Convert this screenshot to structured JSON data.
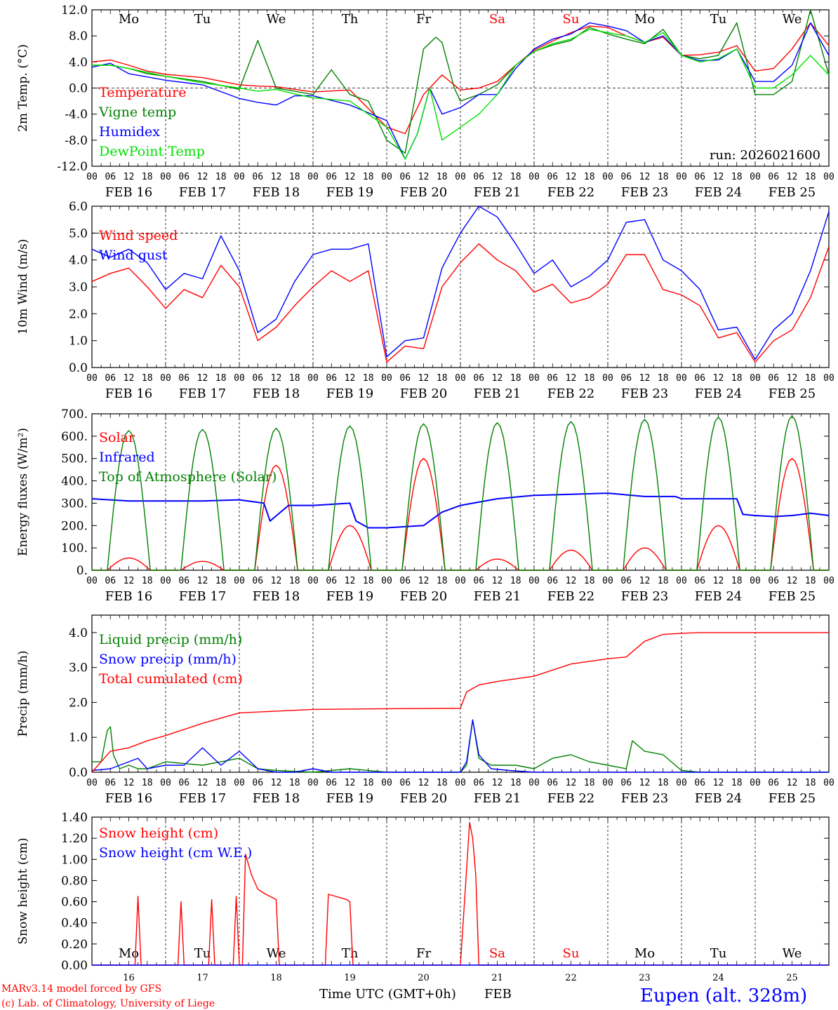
{
  "footer": {
    "model": "MARv3.14 model forced by GFS",
    "lab": "(c) Lab. of Climatology, University of Liege",
    "time_label": "Time UTC (GMT+0h)",
    "month": "FEB",
    "station": "Eupen (alt. 328m)"
  },
  "hour_ticks": [
    "00",
    "06",
    "12",
    "18"
  ],
  "final_tick": "00",
  "dates": [
    "FEB 16",
    "FEB 17",
    "FEB 18",
    "FEB 19",
    "FEB 20",
    "FEB 21",
    "FEB 22",
    "FEB 23",
    "FEB 24",
    "FEB 25"
  ],
  "day_numbers": [
    "16",
    "17",
    "18",
    "19",
    "20",
    "21",
    "22",
    "23",
    "24",
    "25"
  ],
  "weekdays": [
    "Mo",
    "Tu",
    "We",
    "Th",
    "Fr",
    "Sa",
    "Su",
    "Mo",
    "Tu",
    "We"
  ],
  "weekend_days": [
    5,
    6
  ],
  "colors": {
    "red": "#ff0000",
    "green": "#008000",
    "blue": "#0000ff",
    "lightgreen": "#00e000",
    "weekend": "#ff0000",
    "station": "#0000ff"
  },
  "chart_data": [
    {
      "id": "temp",
      "type": "line",
      "ylabel": "2m Temp. (°C)",
      "ylim": [
        -12,
        12
      ],
      "yticks": [
        "12.0",
        "8.0",
        "4.0",
        "0.0",
        "-4.0",
        "-8.0",
        "-12.0"
      ],
      "ytick_values": [
        12,
        8,
        4,
        0,
        -4,
        -8,
        -12
      ],
      "ref_lines": [
        0
      ],
      "run_label": "run: 2026021600",
      "x_range_hours": [
        0,
        240
      ],
      "series": [
        {
          "name": "Temperature",
          "color": "red",
          "x": [
            0,
            6,
            12,
            18,
            24,
            36,
            48,
            54,
            60,
            72,
            84,
            96,
            102,
            108,
            114,
            120,
            126,
            132,
            138,
            144,
            150,
            156,
            162,
            168,
            174,
            180,
            186,
            192,
            198,
            204,
            210,
            216,
            222,
            228,
            234,
            240
          ],
          "values": [
            4,
            4.3,
            3.5,
            2.6,
            2.1,
            1.6,
            0.5,
            0.3,
            0.2,
            -0.6,
            -0.3,
            -6,
            -7,
            -1,
            2,
            -0.3,
            0,
            1,
            3.5,
            5.8,
            7.2,
            8.5,
            9.5,
            9.3,
            8,
            7,
            7.8,
            5,
            5.1,
            5.5,
            6.5,
            2.6,
            3,
            6,
            10,
            6.5
          ]
        },
        {
          "name": "Vigne temp",
          "color": "green",
          "x": [
            0,
            6,
            12,
            18,
            24,
            36,
            44,
            48,
            54,
            60,
            66,
            72,
            78,
            84,
            90,
            96,
            102,
            108,
            112,
            114,
            118,
            120,
            126,
            132,
            138,
            144,
            150,
            156,
            162,
            168,
            174,
            180,
            186,
            192,
            198,
            204,
            210,
            216,
            222,
            228,
            234,
            240
          ],
          "values": [
            3.5,
            3.5,
            3,
            2.2,
            1.8,
            1,
            0.2,
            -0.2,
            7.3,
            0,
            -0.5,
            -1,
            2.8,
            -1,
            -2,
            -8,
            -10,
            6,
            7.8,
            7,
            0,
            -2,
            -1,
            0.5,
            3.5,
            5.6,
            6.6,
            7.3,
            9.3,
            8.3,
            7.5,
            6.8,
            9,
            5,
            4.5,
            5,
            10,
            -1,
            -1,
            1,
            13,
            2
          ]
        },
        {
          "name": "Humidex",
          "color": "blue",
          "x": [
            0,
            6,
            12,
            18,
            24,
            36,
            48,
            54,
            60,
            66,
            72,
            84,
            96,
            102,
            106,
            110,
            114,
            120,
            126,
            132,
            138,
            144,
            150,
            156,
            162,
            168,
            174,
            180,
            186,
            192,
            198,
            204,
            210,
            216,
            222,
            228,
            234,
            240
          ],
          "values": [
            3.2,
            3.8,
            2.2,
            1.7,
            1.2,
            0.5,
            -1.6,
            -2.2,
            -2.6,
            -1.2,
            -1.2,
            -2.6,
            -5,
            -10.9,
            -7,
            0,
            -4,
            -3,
            -1,
            -1,
            3,
            6,
            7.5,
            8.3,
            10,
            9.5,
            8.8,
            7,
            8,
            5,
            4.2,
            4.3,
            6,
            1,
            1,
            3.5,
            10,
            5
          ]
        },
        {
          "name": "DewPoint Temp",
          "color": "lightgreen",
          "x": [
            0,
            6,
            12,
            18,
            24,
            36,
            48,
            54,
            60,
            66,
            72,
            84,
            96,
            102,
            106,
            110,
            114,
            120,
            126,
            132,
            138,
            144,
            150,
            156,
            162,
            168,
            174,
            180,
            186,
            192,
            198,
            204,
            210,
            216,
            222,
            228,
            234,
            240
          ],
          "values": [
            3.5,
            3.5,
            3,
            2.4,
            1.8,
            0.8,
            0,
            -0.5,
            -0.2,
            -0.9,
            -1.5,
            -2,
            -6,
            -10.9,
            -7,
            0,
            -8,
            -6,
            -4,
            -1,
            3.5,
            5.6,
            6.8,
            7.5,
            9,
            8.5,
            8,
            7,
            8.5,
            5,
            4,
            4.5,
            6,
            0,
            0,
            2,
            5,
            2
          ]
        }
      ]
    },
    {
      "id": "wind",
      "type": "line",
      "ylabel": "10m Wind (m/s)",
      "ylim": [
        0,
        6
      ],
      "yticks": [
        "6.0",
        "5.0",
        "4.0",
        "3.0",
        "2.0",
        "1.0",
        "0.0"
      ],
      "ytick_values": [
        6,
        5,
        4,
        3,
        2,
        1,
        0
      ],
      "ref_lines": [
        5
      ],
      "x_range_hours": [
        0,
        240
      ],
      "series": [
        {
          "name": "Wind speed",
          "color": "red",
          "x": [
            0,
            6,
            12,
            18,
            24,
            30,
            36,
            42,
            48,
            54,
            60,
            66,
            72,
            78,
            84,
            90,
            96,
            102,
            108,
            114,
            120,
            126,
            132,
            138,
            144,
            150,
            156,
            162,
            168,
            174,
            180,
            186,
            192,
            198,
            204,
            210,
            216,
            222,
            228,
            234,
            240
          ],
          "values": [
            3.2,
            3.5,
            3.7,
            3,
            2.2,
            2.9,
            2.6,
            3.8,
            3,
            1,
            1.5,
            2.3,
            3,
            3.6,
            3.2,
            3.6,
            0.2,
            0.8,
            0.7,
            3,
            3.9,
            4.6,
            4.0,
            3.6,
            2.8,
            3.1,
            2.4,
            2.6,
            3.1,
            4.2,
            4.2,
            2.9,
            2.7,
            2.3,
            1.1,
            1.3,
            0.2,
            1.0,
            1.4,
            2.6,
            4.5
          ]
        },
        {
          "name": "Wind gust",
          "color": "blue",
          "x": [
            0,
            6,
            12,
            18,
            24,
            30,
            36,
            42,
            48,
            54,
            60,
            66,
            72,
            78,
            84,
            90,
            96,
            102,
            108,
            114,
            120,
            126,
            132,
            138,
            144,
            150,
            156,
            162,
            168,
            174,
            180,
            186,
            192,
            198,
            204,
            210,
            216,
            222,
            228,
            234,
            240
          ],
          "values": [
            4.4,
            4.1,
            4.4,
            3.9,
            2.9,
            3.5,
            3.3,
            4.9,
            3.6,
            1.3,
            1.8,
            3.2,
            4.2,
            4.4,
            4.4,
            4.6,
            0.4,
            1.0,
            1.1,
            3.7,
            5.0,
            6.0,
            5.6,
            4.6,
            3.5,
            4.0,
            3.0,
            3.4,
            4.0,
            5.4,
            5.5,
            4.0,
            3.6,
            2.9,
            1.4,
            1.5,
            0.3,
            1.4,
            2.0,
            3.6,
            5.8
          ]
        }
      ]
    },
    {
      "id": "energy",
      "type": "line",
      "ylabel": "Energy fluxes (W/m²)",
      "ylim": [
        0,
        700
      ],
      "yticks": [
        "700.",
        "600.",
        "500.",
        "400.",
        "300.",
        "200.",
        "100.",
        "0."
      ],
      "ytick_values": [
        700,
        600,
        500,
        400,
        300,
        200,
        100,
        0
      ],
      "ref_lines": [],
      "x_range_hours": [
        0,
        240
      ],
      "series": [
        {
          "name": "Solar",
          "color": "red",
          "solar_peaks": [
            55,
            40,
            470,
            200,
            500,
            50,
            90,
            100,
            200,
            500
          ]
        },
        {
          "name": "Infrared",
          "color": "blue",
          "x": [
            0,
            12,
            24,
            36,
            48,
            56,
            58,
            64,
            72,
            84,
            86,
            90,
            96,
            102,
            108,
            114,
            120,
            132,
            144,
            156,
            168,
            180,
            190,
            192,
            198,
            204,
            210,
            212,
            216,
            222,
            228,
            234,
            240
          ],
          "values": [
            320,
            310,
            310,
            310,
            315,
            300,
            220,
            290,
            290,
            300,
            220,
            190,
            190,
            195,
            200,
            260,
            290,
            320,
            335,
            340,
            345,
            330,
            330,
            320,
            320,
            320,
            320,
            250,
            245,
            240,
            245,
            255,
            245
          ]
        },
        {
          "name": "Top of Atmosphere (Solar)",
          "color": "green",
          "solar_peaks": [
            625,
            630,
            635,
            645,
            655,
            660,
            665,
            675,
            685,
            690
          ]
        }
      ]
    },
    {
      "id": "precip",
      "type": "line",
      "ylabel": "Precip (mm/h)",
      "ylim": [
        0,
        4.5
      ],
      "yticks": [
        "4.0",
        "3.0",
        "2.0",
        "1.0",
        "0.0"
      ],
      "ytick_values": [
        4,
        3,
        2,
        1,
        0
      ],
      "ref_lines": [],
      "x_range_hours": [
        0,
        240
      ],
      "series": [
        {
          "name": "Liquid precip (mm/h)",
          "color": "green",
          "x": [
            0,
            3,
            5,
            6,
            7,
            9,
            12,
            15,
            18,
            24,
            36,
            42,
            48,
            54,
            60,
            72,
            84,
            96,
            108,
            120,
            122,
            124,
            126,
            130,
            138,
            144,
            150,
            156,
            162,
            168,
            174,
            176,
            180,
            186,
            192,
            198,
            204,
            210,
            216,
            222,
            228,
            234,
            240
          ],
          "values": [
            0.3,
            0.3,
            1.2,
            1.3,
            0.5,
            0.1,
            0.2,
            0.1,
            0.1,
            0.3,
            0.2,
            0.3,
            0.4,
            0.1,
            0.05,
            0,
            0.1,
            0,
            0,
            0,
            0.2,
            1.5,
            0.4,
            0.2,
            0.2,
            0.1,
            0.4,
            0.5,
            0.3,
            0.2,
            0.1,
            0.9,
            0.6,
            0.5,
            0.05,
            0,
            0,
            0,
            0,
            0,
            0,
            0,
            0
          ]
        },
        {
          "name": "Snow precip (mm/h)",
          "color": "blue",
          "x": [
            0,
            6,
            12,
            15,
            18,
            24,
            30,
            36,
            42,
            48,
            54,
            60,
            66,
            72,
            78,
            84,
            96,
            108,
            120,
            122,
            124,
            126,
            130,
            136,
            144,
            150,
            156,
            162,
            168,
            174,
            180,
            186,
            192,
            198,
            204,
            210,
            216,
            222,
            228,
            234,
            240
          ],
          "values": [
            0.05,
            0.1,
            0.3,
            0.4,
            0.1,
            0.2,
            0.2,
            0.7,
            0.2,
            0.6,
            0.1,
            0,
            0,
            0.1,
            0,
            0,
            0,
            0,
            0,
            0.3,
            1.5,
            0.5,
            0.1,
            0.05,
            0,
            0,
            0,
            0,
            0,
            0,
            0,
            0,
            0,
            0,
            0,
            0,
            0,
            0,
            0,
            0,
            0
          ]
        },
        {
          "name": "Total cumulated (cm)",
          "color": "red",
          "x": [
            0,
            6,
            12,
            18,
            24,
            36,
            48,
            60,
            72,
            96,
            120,
            122,
            126,
            132,
            144,
            156,
            168,
            174,
            180,
            186,
            192,
            198,
            204,
            210,
            216,
            222,
            228,
            234,
            240
          ],
          "values": [
            0,
            0.6,
            0.7,
            0.9,
            1.05,
            1.4,
            1.7,
            1.75,
            1.8,
            1.82,
            1.83,
            2.3,
            2.5,
            2.6,
            2.75,
            3.1,
            3.25,
            3.3,
            3.75,
            3.95,
            3.98,
            4.0,
            4.0,
            4.0,
            4.0,
            4.0,
            4.0,
            4.0,
            4.0
          ]
        }
      ]
    },
    {
      "id": "snow",
      "type": "line",
      "ylabel": "Snow height (cm)",
      "ylim": [
        0,
        1.4
      ],
      "yticks": [
        "1.40",
        "1.20",
        "1.00",
        "0.80",
        "0.60",
        "0.40",
        "0.20",
        "0.00"
      ],
      "ytick_values": [
        1.4,
        1.2,
        1.0,
        0.8,
        0.6,
        0.4,
        0.2,
        0
      ],
      "ref_lines": [],
      "x_range_hours": [
        0,
        240
      ],
      "series": [
        {
          "name": "Snow height (cm)",
          "color": "red",
          "x": [
            0,
            14,
            15,
            16,
            28,
            29,
            30,
            38,
            39,
            40,
            46,
            47,
            48,
            49,
            50,
            52,
            54,
            56,
            58,
            60,
            61,
            64,
            76,
            77,
            83,
            84,
            85,
            120,
            123,
            124,
            125,
            126,
            127,
            240
          ],
          "values": [
            0,
            0,
            0.65,
            0,
            0,
            0.6,
            0,
            0,
            0.62,
            0,
            0,
            0.65,
            0,
            0,
            1.05,
            0.85,
            0.72,
            0.68,
            0.65,
            0.62,
            0,
            0,
            0,
            0.67,
            0.62,
            0.6,
            0,
            0,
            1.35,
            1.2,
            0.85,
            0,
            0,
            0
          ]
        },
        {
          "name": "Snow height (cm W.E.)",
          "color": "blue",
          "x": [
            0,
            240
          ],
          "values": [
            0,
            0
          ]
        }
      ]
    }
  ]
}
